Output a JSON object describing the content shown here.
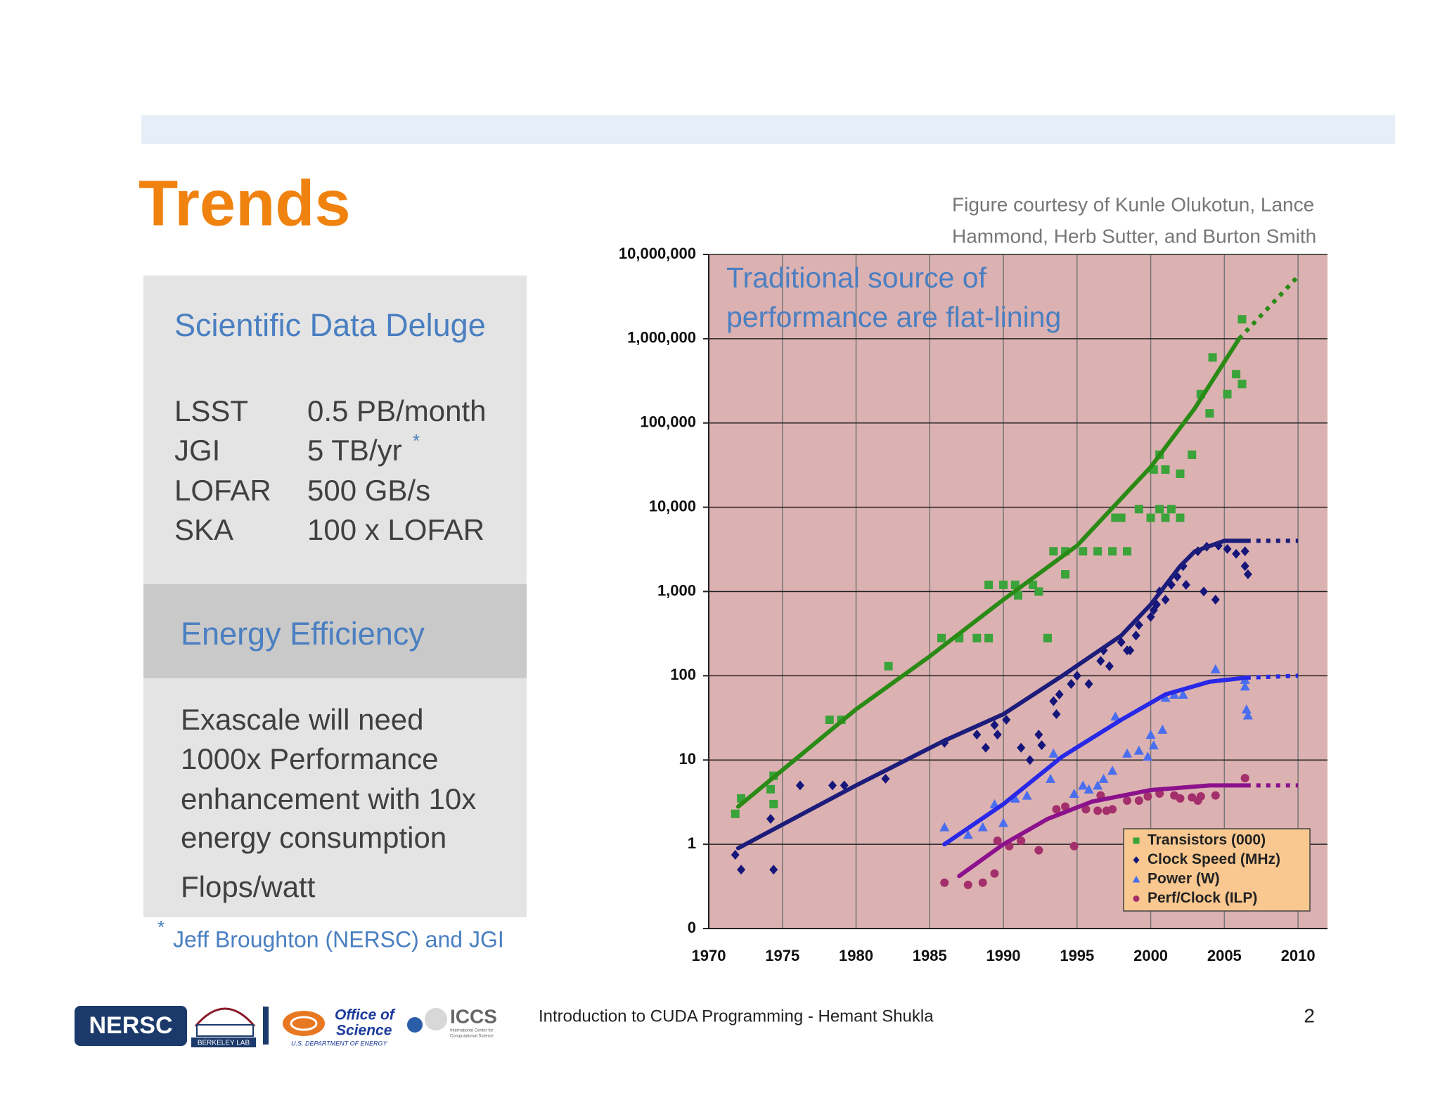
{
  "header": {
    "title": "Trends"
  },
  "panel": {
    "heading1": "Scientific Data Deluge",
    "rows": [
      [
        "LSST",
        "0.5 PB/month"
      ],
      [
        "JGI",
        "5 TB/yr"
      ],
      [
        "LOFAR",
        "500 GB/s"
      ],
      [
        "SKA",
        "100 x LOFAR"
      ]
    ],
    "note_mark": "*",
    "heading2": "Energy Efficiency",
    "body": [
      "Exascale will need",
      "1000x Performance",
      "enhancement with 10x",
      "energy consumption"
    ],
    "metric": "Flops/watt"
  },
  "footnote": {
    "mark": "*",
    "text": "Jeff Broughton (NERSC) and JGI"
  },
  "credit": [
    "Figure courtesy of Kunle Olukotun, Lance",
    "Hammond, Herb Sutter, and Burton Smith"
  ],
  "chart_data": {
    "type": "scatter",
    "annotation": [
      "Traditional source of",
      "performance are flat-lining"
    ],
    "xlim": [
      1970,
      2012
    ],
    "xticks": [
      1970,
      1975,
      1980,
      1985,
      1990,
      1995,
      2000,
      2005,
      2010
    ],
    "ylim": [
      0.1,
      10000000
    ],
    "yscale": "log",
    "yticks": [
      {
        "value": 0.1,
        "label": "0"
      },
      1,
      10,
      100,
      {
        "value": 1000,
        "label": "1,000"
      },
      {
        "value": 10000,
        "label": "10,000"
      },
      {
        "value": 100000,
        "label": "100,000"
      },
      {
        "value": 1000000,
        "label": "1,000,000"
      },
      {
        "value": 10000000,
        "label": "10,000,000"
      }
    ],
    "grid": true,
    "legend": "lower right",
    "background": "#dcb1b1",
    "series": [
      {
        "name": "Transistors (000)",
        "color": "#2a8a16",
        "marker": "square",
        "marker_color": "#3aa33a",
        "x": [
          1971.8,
          1972.2,
          1974.2,
          1974.4,
          1974.4,
          1978.2,
          1979,
          1982.2,
          1985.8,
          1987,
          1988.2,
          1989,
          1989,
          1990,
          1990.8,
          1991,
          1992,
          1992.4,
          1993,
          1993.4,
          1994.2,
          1994.2,
          1995.4,
          1996.4,
          1997.4,
          1998.4,
          1997.6,
          1998,
          1999.2,
          2000,
          2000.6,
          2001,
          2001.4,
          2002,
          2000.2,
          2001,
          2000.6,
          2002,
          2002.8,
          2003.4,
          2004,
          2004.2,
          2005.2,
          2005.8,
          2006.2,
          2006.2
        ],
        "values": [
          2.3,
          3.5,
          4.5,
          3,
          6.5,
          30,
          30,
          130,
          280,
          280,
          280,
          280,
          1200,
          1200,
          1200,
          900,
          1200,
          1000,
          280,
          3000,
          3000,
          1600,
          3000,
          3000,
          3000,
          3000,
          7500,
          7500,
          9500,
          7500,
          9500,
          7500,
          9500,
          7500,
          28000,
          28000,
          42000,
          25000,
          42000,
          220000,
          130000,
          600000,
          220000,
          380000,
          290000,
          1700000
        ],
        "trend_x": [
          1972,
          1980,
          1985,
          1990,
          1995,
          2000,
          2003,
          2006
        ],
        "trend": [
          2.8,
          40,
          170,
          800,
          3500,
          30000,
          150000,
          1000000
        ],
        "projection_x": [
          2006,
          2010
        ],
        "projection": [
          1000000,
          5500000
        ]
      },
      {
        "name": "Clock Speed (MHz)",
        "color": "#1c1c7a",
        "marker": "diamond",
        "marker_color": "#16167a",
        "x": [
          1971.8,
          1972.2,
          1974.2,
          1974.4,
          1976.2,
          1978.4,
          1979.2,
          1982,
          1986,
          1988.2,
          1988.8,
          1989.4,
          1989.6,
          1990.2,
          1991.2,
          1991.8,
          1992.6,
          1992.4,
          1993.6,
          1993.8,
          1993.4,
          1994.6,
          1995,
          1995.8,
          1996.6,
          1996.8,
          1997.2,
          1998,
          1998.4,
          1999,
          1999.2,
          2000,
          2000.4,
          2000.6,
          2001,
          2001.4,
          2001.8,
          2002.2,
          2002.4,
          2003.2,
          2003.8,
          2004.6,
          2005.2,
          2005.8,
          2006.4,
          2006.4,
          2006.6,
          2003.6,
          2004.4,
          2000.2,
          1998.6
        ],
        "values": [
          0.75,
          0.5,
          2,
          0.5,
          5,
          5,
          5,
          6,
          16,
          20,
          14,
          26,
          20,
          30,
          14,
          10,
          15,
          20,
          35,
          60,
          50,
          80,
          100,
          80,
          150,
          200,
          130,
          250,
          200,
          300,
          400,
          500,
          700,
          1000,
          800,
          1200,
          1500,
          2000,
          1200,
          3000,
          3400,
          3500,
          3200,
          2800,
          3000,
          2000,
          1600,
          1000,
          800,
          600,
          200
        ],
        "trend_x": [
          1972,
          1980,
          1986,
          1990,
          1994,
          1998,
          2000,
          2002,
          2003,
          2005,
          2006.5
        ],
        "trend": [
          0.9,
          5,
          17,
          35,
          100,
          300,
          700,
          2000,
          3000,
          4000,
          4000
        ],
        "projection_x": [
          2006.5,
          2010
        ],
        "projection": [
          4000,
          4000
        ]
      },
      {
        "name": "Power (W)",
        "color": "#2828e6",
        "marker": "triangle",
        "marker_color": "#4a6ef0",
        "x": [
          1986,
          1987.6,
          1988.6,
          1989.4,
          1990,
          1990.8,
          1991.6,
          1993.2,
          1993.4,
          1994.8,
          1995.4,
          1995.8,
          1996.4,
          1996.8,
          1997.4,
          1997.6,
          1998.4,
          1999.2,
          1999.8,
          2000,
          2000.2,
          2000.8,
          2001,
          2001.6,
          2002.2,
          2004.4,
          2006.4,
          2006.4,
          2006.5,
          2006.6
        ],
        "values": [
          1.6,
          1.3,
          1.6,
          3,
          1.8,
          3.5,
          3.8,
          6,
          12,
          4,
          5,
          4.5,
          5,
          6,
          7.5,
          33,
          12,
          13,
          11,
          20,
          15,
          23,
          55,
          60,
          60,
          120,
          90,
          75,
          40,
          34
        ],
        "trend_x": [
          1986,
          1990,
          1994,
          1998,
          2001,
          2004,
          2006.5
        ],
        "trend": [
          1,
          3,
          11,
          30,
          60,
          85,
          95
        ],
        "projection_x": [
          2006.5,
          2010
        ],
        "projection": [
          95,
          100
        ]
      },
      {
        "name": "Perf/Clock (ILP)",
        "color": "#8c118c",
        "marker": "circle",
        "marker_color": "#a3306c",
        "x": [
          1986,
          1987.6,
          1988.6,
          1989.4,
          1989.6,
          1990.4,
          1991.2,
          1992.4,
          1993.6,
          1994.2,
          1994.8,
          1995.6,
          1996.4,
          1996.6,
          1997,
          1997.4,
          1998.4,
          1999.2,
          1999.8,
          2000.6,
          2001.6,
          2002,
          2002.8,
          2003.2,
          2003.4,
          2004.4,
          2006.4
        ],
        "values": [
          0.35,
          0.33,
          0.35,
          0.45,
          1.1,
          0.95,
          1.1,
          0.85,
          2.6,
          2.8,
          0.95,
          2.6,
          2.5,
          3.8,
          2.5,
          2.6,
          3.3,
          3.3,
          3.7,
          4,
          3.8,
          3.5,
          3.6,
          3.3,
          3.7,
          3.8,
          6.1
        ],
        "trend_x": [
          1987,
          1990,
          1993,
          1996,
          2000,
          2004,
          2006.5
        ],
        "trend": [
          0.42,
          1,
          2,
          3.2,
          4.4,
          5,
          5
        ],
        "projection_x": [
          2006.5,
          2010
        ],
        "projection": [
          5,
          5
        ]
      }
    ]
  },
  "footer": {
    "text": "Introduction to CUDA Programming - Hemant Shukla",
    "page": 2
  },
  "logos": {
    "nersc": "NERSC",
    "lab": "BERKELEY LAB",
    "office": [
      "Office of",
      "Science"
    ],
    "doe": "U.S. DEPARTMENT OF ENERGY",
    "iccs": "ICCS",
    "iccs_full": [
      "International Center for",
      "Computational Science"
    ]
  }
}
